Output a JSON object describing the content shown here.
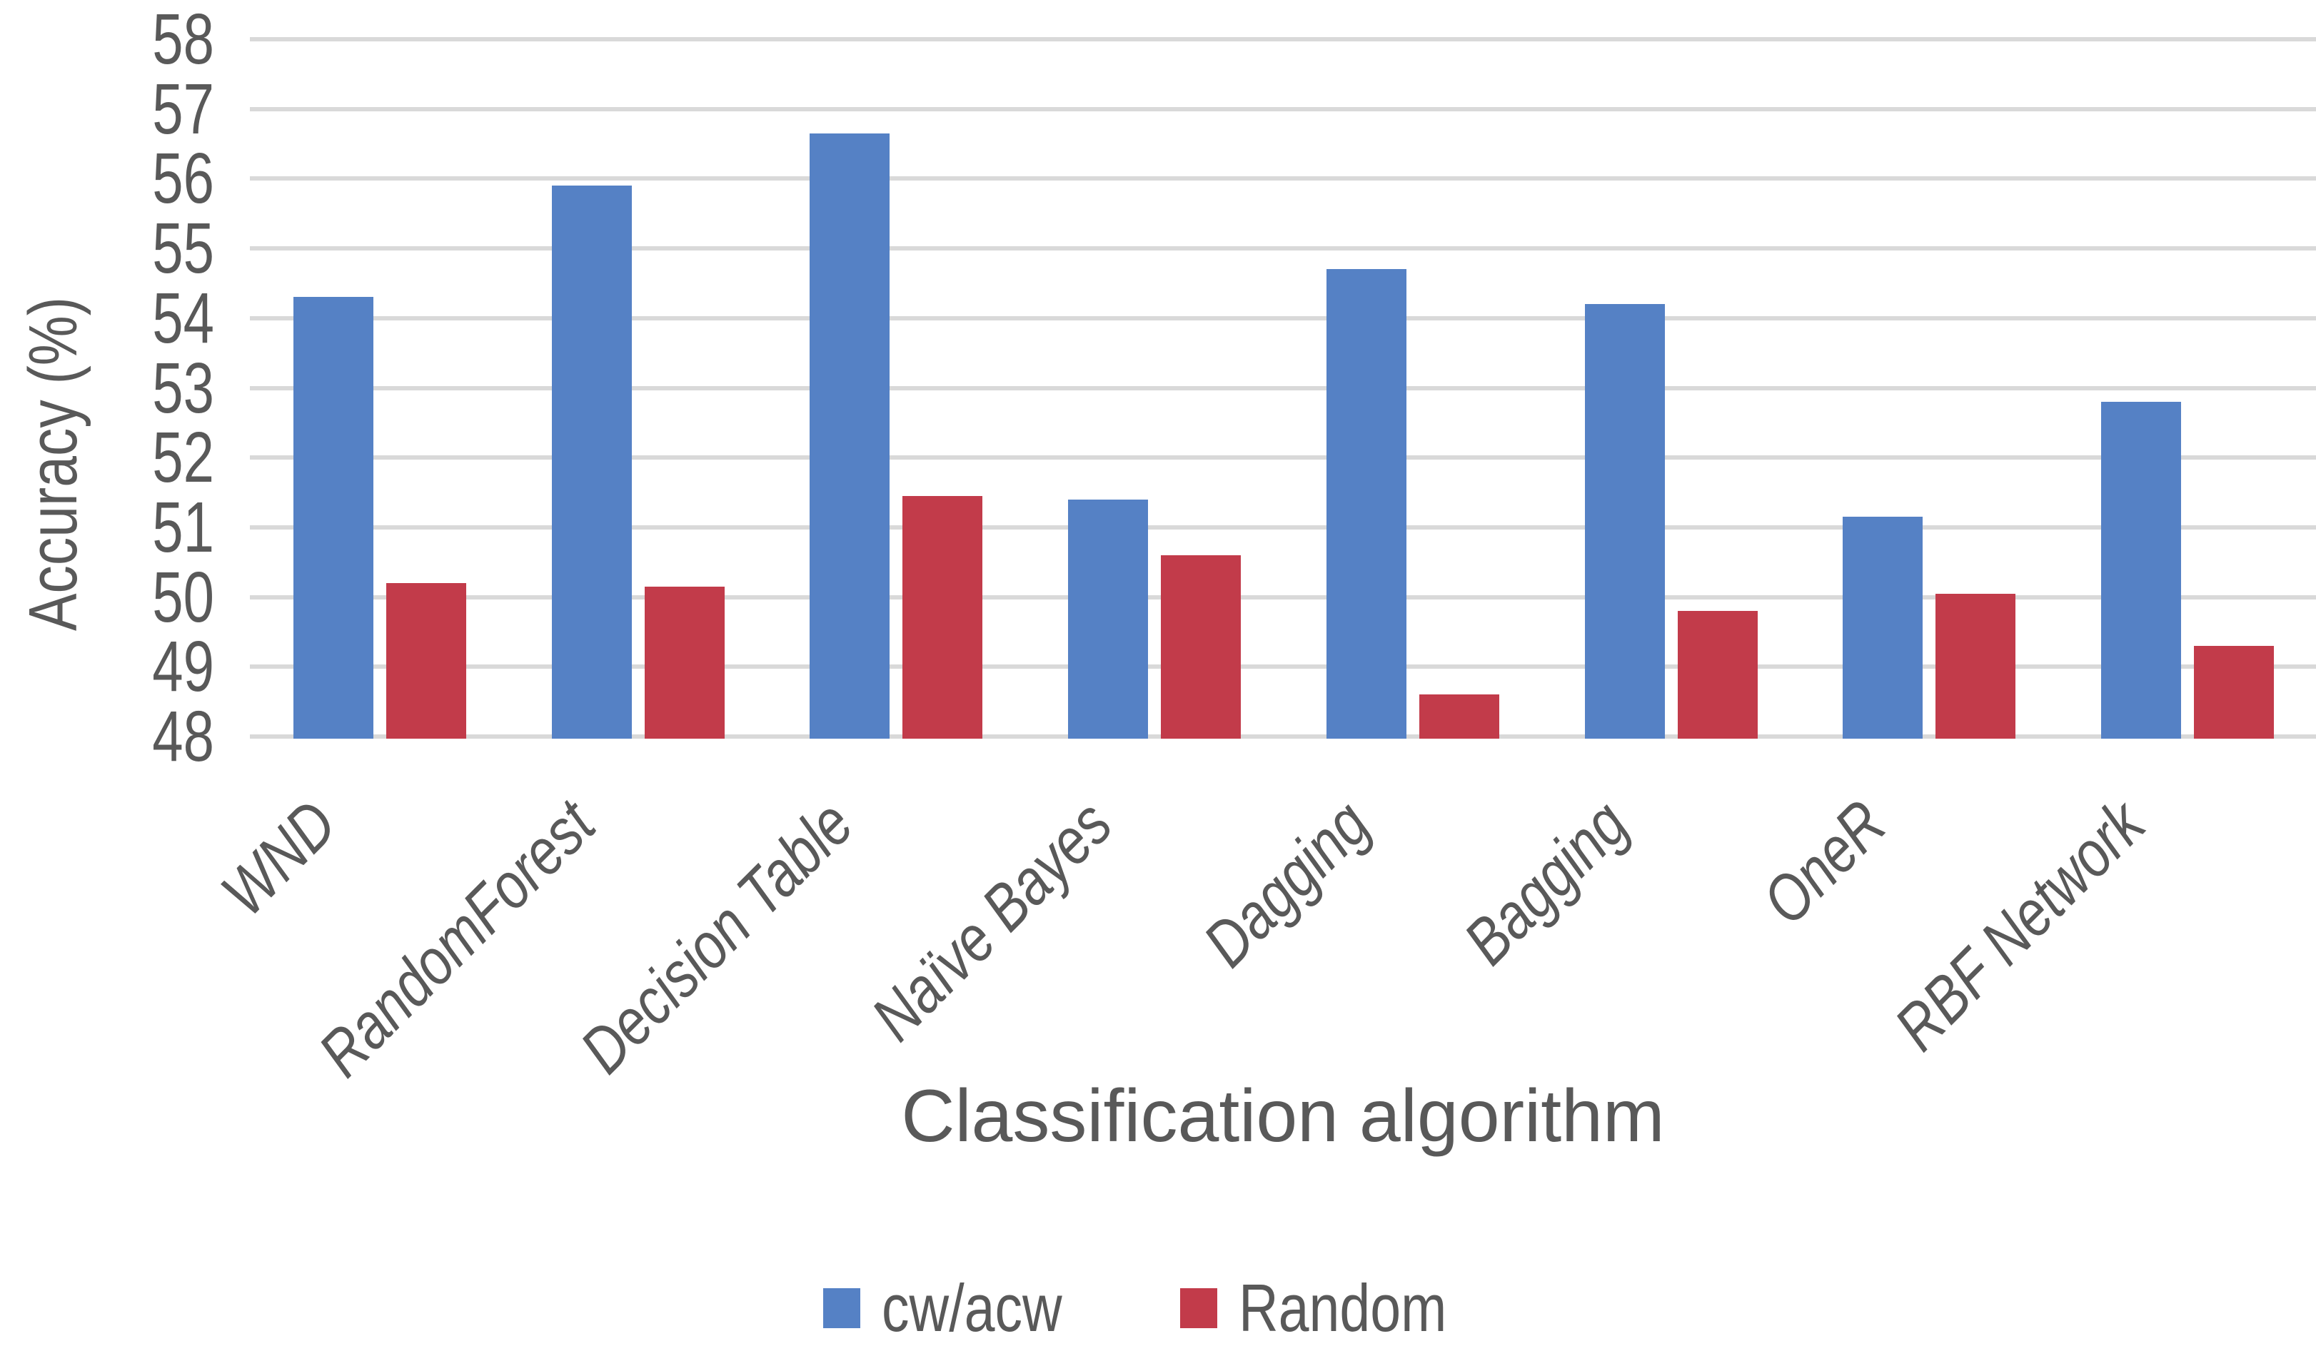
{
  "chart_data": {
    "type": "bar",
    "title": "",
    "xlabel": "Classification algorithm",
    "ylabel": "Accuracy (%)",
    "categories": [
      "WND",
      "RandomForest",
      "Decision Table",
      "Naïve Bayes",
      "Dagging",
      "Bagging",
      "OneR",
      "RBF Network"
    ],
    "series": [
      {
        "name": "cw/acw",
        "color": "#5581C5",
        "values": [
          54.3,
          55.9,
          56.65,
          51.4,
          54.7,
          54.2,
          51.15,
          52.8
        ]
      },
      {
        "name": "Random",
        "color": "#C23B4A",
        "values": [
          50.2,
          50.15,
          51.45,
          50.6,
          48.6,
          49.8,
          50.05,
          49.3
        ]
      }
    ],
    "ylim": [
      48,
      58
    ],
    "y_ticks": [
      48,
      49,
      50,
      51,
      52,
      53,
      54,
      55,
      56,
      57,
      58
    ],
    "grid": true,
    "gridline_color": "#D9D9D9",
    "text_color": "#595959",
    "legend_position": "bottom",
    "category_label_style": "italic-rotated-45deg"
  }
}
